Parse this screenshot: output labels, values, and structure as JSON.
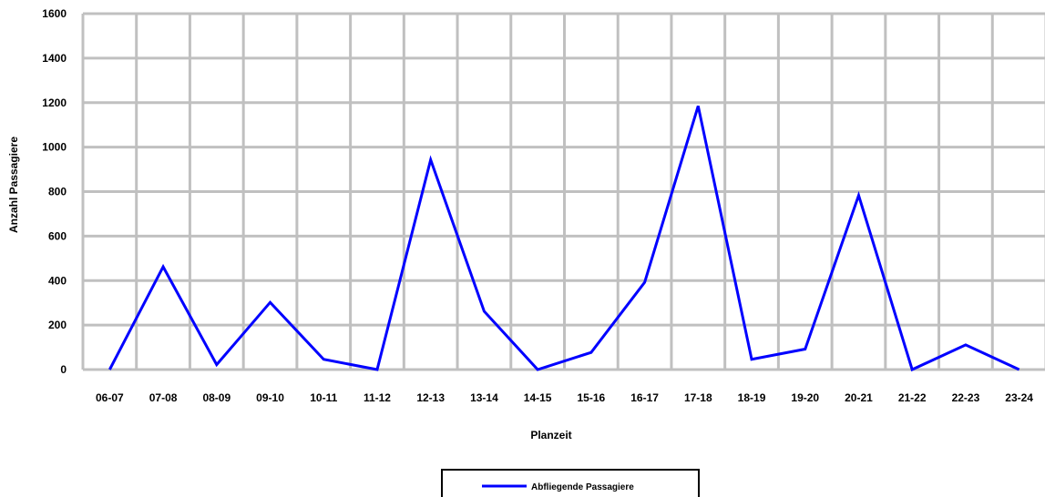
{
  "chart_data": {
    "type": "line",
    "xlabel": "Planzeit",
    "ylabel": "Anzahl Passagiere",
    "categories": [
      "06-07",
      "07-08",
      "08-09",
      "09-10",
      "10-11",
      "11-12",
      "12-13",
      "13-14",
      "14-15",
      "15-16",
      "16-17",
      "17-18",
      "18-19",
      "19-20",
      "20-21",
      "21-22",
      "22-23",
      "23-24"
    ],
    "series": [
      {
        "name": "Abfliegende Passagiere",
        "color": "#0000ff",
        "values": [
          0,
          462,
          22,
          302,
          46,
          0,
          943,
          262,
          0,
          77,
          392,
          1185,
          46,
          92,
          783,
          0,
          111,
          0
        ]
      }
    ],
    "ylim": [
      0,
      1600
    ],
    "yticks": [
      0,
      200,
      400,
      600,
      800,
      1000,
      1200,
      1400,
      1600
    ],
    "grid": true,
    "grid_color": "#c0c0c0",
    "legend_position": "bottom-center"
  }
}
